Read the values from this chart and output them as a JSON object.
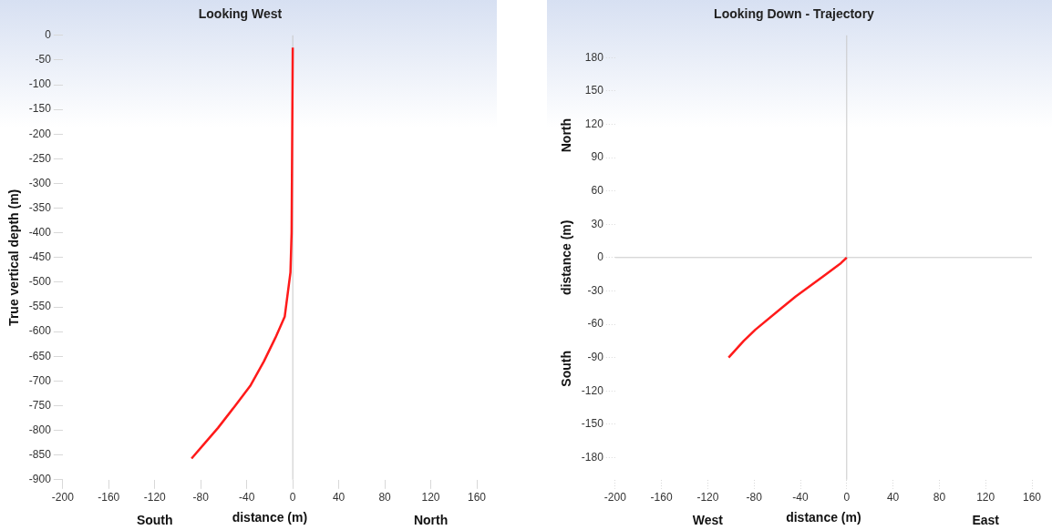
{
  "chart_data": [
    {
      "type": "line",
      "title": "Looking West",
      "xlabel": "distance (m)",
      "ylabel": "True vertical depth (m)",
      "annotations": [
        "South",
        "North"
      ],
      "series": [
        {
          "color": "#ff1a1a",
          "x": [
            0,
            -1,
            -2,
            -7,
            -15,
            -25,
            -37,
            -50,
            -65,
            -78,
            -88
          ],
          "values": [
            -25,
            -400,
            -480,
            -570,
            -612,
            -660,
            -710,
            -750,
            -795,
            -830,
            -857
          ]
        }
      ],
      "xlim": [
        -200,
        160
      ],
      "xticks": [
        -200,
        -160,
        -120,
        -80,
        -40,
        0,
        40,
        80,
        120,
        160
      ],
      "ylim": [
        -900,
        0
      ],
      "yticks": [
        0,
        -50,
        -100,
        -150,
        -200,
        -250,
        -300,
        -350,
        -400,
        -450,
        -500,
        -550,
        -600,
        -650,
        -700,
        -750,
        -800,
        -850,
        -900
      ],
      "ref_lines": [
        {
          "axis": "x",
          "value": 0,
          "color": "#c8c8c8"
        }
      ],
      "grid": false,
      "legend": false,
      "marker": "none",
      "line_style": "solid"
    },
    {
      "type": "line",
      "title": "Looking Down - Trajectory",
      "xlabel": "distance (m)",
      "ylabel": "distance (m)",
      "annotations": [
        "North",
        "South",
        "West",
        "East"
      ],
      "series": [
        {
          "color": "#ff1a1a",
          "x": [
            0,
            -5,
            -19,
            -44,
            -57,
            -79,
            -89,
            -102
          ],
          "values": [
            0,
            -5,
            -16,
            -35,
            -46,
            -65,
            -75,
            -90
          ]
        }
      ],
      "xlim": [
        -200,
        160
      ],
      "xticks": [
        -200,
        -160,
        -120,
        -80,
        -40,
        0,
        40,
        80,
        120,
        160
      ],
      "ylim": [
        -200,
        200
      ],
      "yticks": [
        180,
        150,
        120,
        90,
        60,
        30,
        0,
        -30,
        -60,
        -90,
        -120,
        -150,
        -180
      ],
      "ref_lines": [
        {
          "axis": "x",
          "value": 0,
          "color": "#c8c8c8"
        },
        {
          "axis": "y",
          "value": 0,
          "color": "#c8c8c8"
        }
      ],
      "grid": false,
      "legend": false,
      "marker": "none",
      "line_style": "solid"
    }
  ]
}
